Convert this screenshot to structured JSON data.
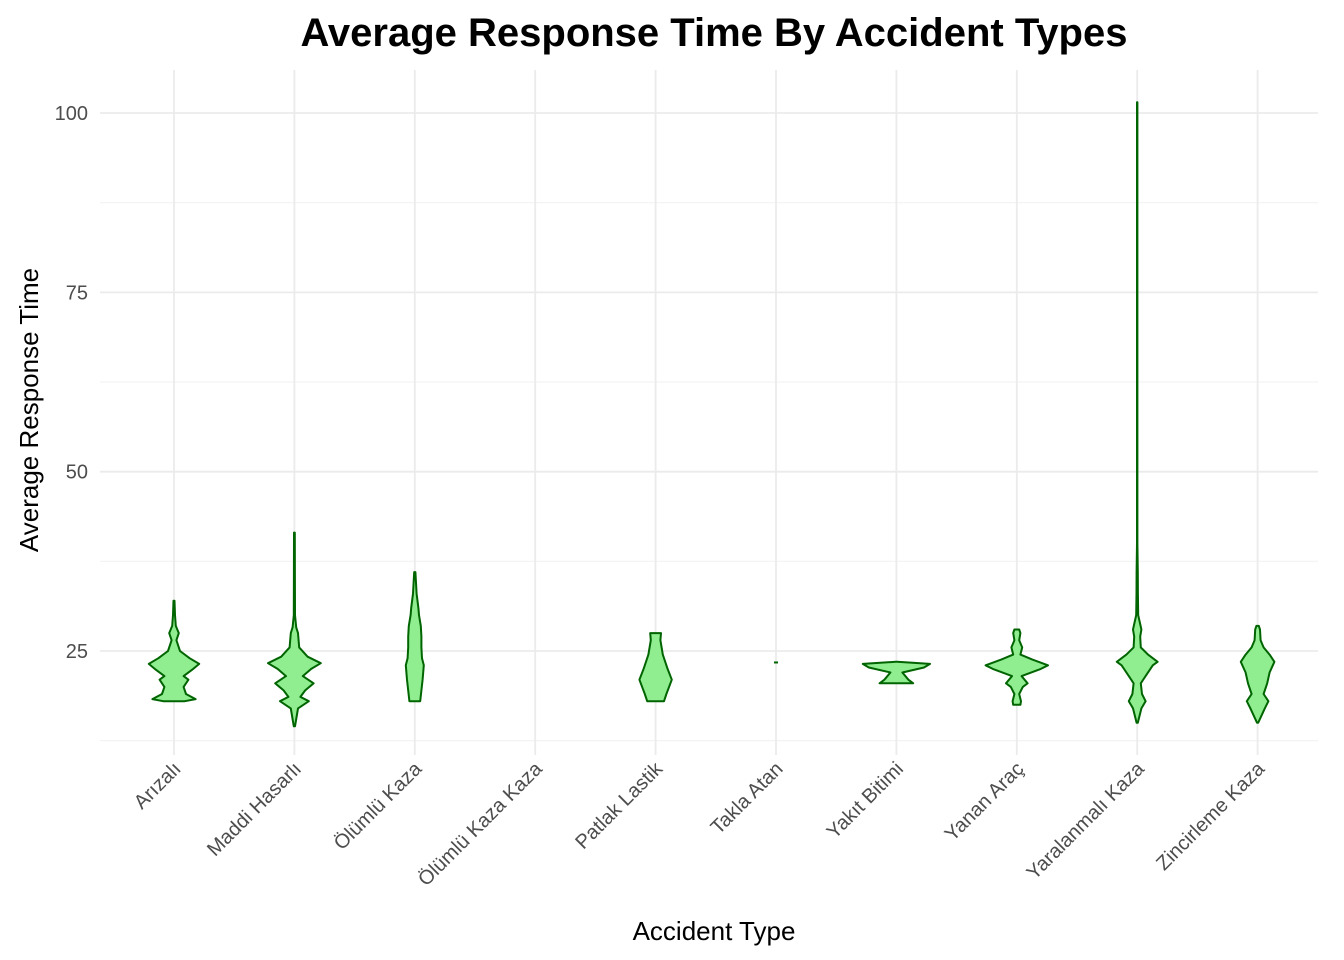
{
  "chart_data": {
    "type": "violin",
    "title": "Average Response Time By Accident Types",
    "xlabel": "Accident Type",
    "ylabel": "Average Response Time",
    "ylim": [
      10.5,
      106
    ],
    "yticks": [
      25,
      50,
      75,
      100
    ],
    "grid": true,
    "legend": "none",
    "fill_color": "#90ee90",
    "outline_color": "#006400",
    "categories": [
      "Arızalı",
      "Maddi Hasarlı",
      "Ölümlü Kaza",
      "Ölümlü Kaza Kaza",
      "Patlak Lastik",
      "Takla Atan",
      "Yakıt Bitimi",
      "Yanan Araç",
      "Yaralanmalı Kaza",
      "Zincirleme Kaza"
    ],
    "violins": [
      {
        "category": "Arızalı",
        "min": 18.0,
        "max": 32.0,
        "profile": [
          [
            18.0,
            0.9
          ],
          [
            18.3,
            1.8
          ],
          [
            19.0,
            1.0
          ],
          [
            20.0,
            0.8
          ],
          [
            21.0,
            1.2
          ],
          [
            21.5,
            0.8
          ],
          [
            22.5,
            1.6
          ],
          [
            23.2,
            2.1
          ],
          [
            24.0,
            1.3
          ],
          [
            25.0,
            0.5
          ],
          [
            26.5,
            0.2
          ],
          [
            27.5,
            0.4
          ],
          [
            28.5,
            0.15
          ],
          [
            30.0,
            0.08
          ],
          [
            32.0,
            0.04
          ]
        ]
      },
      {
        "category": "Maddi Hasarlı",
        "min": 14.5,
        "max": 41.5,
        "profile": [
          [
            14.5,
            0.05
          ],
          [
            17.0,
            0.3
          ],
          [
            18.0,
            1.2
          ],
          [
            18.6,
            0.5
          ],
          [
            19.5,
            0.9
          ],
          [
            20.5,
            1.6
          ],
          [
            21.5,
            0.7
          ],
          [
            22.5,
            1.4
          ],
          [
            23.3,
            2.2
          ],
          [
            24.2,
            1.1
          ],
          [
            25.5,
            0.4
          ],
          [
            27.5,
            0.3
          ],
          [
            28.3,
            0.15
          ],
          [
            30.0,
            0.05
          ],
          [
            35.0,
            0.04
          ],
          [
            41.5,
            0.03
          ]
        ]
      },
      {
        "category": "Ölümlü Kaza",
        "min": 18.0,
        "max": 36.0,
        "profile": [
          [
            18.0,
            0.45
          ],
          [
            19.5,
            0.55
          ],
          [
            21.0,
            0.65
          ],
          [
            23.0,
            0.75
          ],
          [
            24.0,
            0.6
          ],
          [
            25.5,
            0.55
          ],
          [
            27.0,
            0.55
          ],
          [
            28.5,
            0.5
          ],
          [
            30.0,
            0.35
          ],
          [
            31.0,
            0.3
          ],
          [
            33.0,
            0.15
          ],
          [
            36.0,
            0.05
          ]
        ]
      },
      {
        "category": "Ölümlü Kaza Kaza",
        "min": 0,
        "max": 0,
        "profile": []
      },
      {
        "category": "Patlak Lastik",
        "min": 18.0,
        "max": 27.5,
        "profile": [
          [
            18.0,
            0.7
          ],
          [
            19.0,
            0.9
          ],
          [
            21.0,
            1.35
          ],
          [
            22.5,
            1.0
          ],
          [
            24.5,
            0.6
          ],
          [
            26.5,
            0.4
          ],
          [
            27.5,
            0.45
          ]
        ]
      },
      {
        "category": "Takla Atan",
        "min": 23.4,
        "max": 23.4,
        "point": true,
        "profile": []
      },
      {
        "category": "Yakıt Bitimi",
        "min": 20.5,
        "max": 23.5,
        "profile": [
          [
            20.5,
            1.4
          ],
          [
            21.0,
            1.0
          ],
          [
            22.0,
            0.5
          ],
          [
            22.7,
            2.3
          ],
          [
            23.2,
            2.8
          ],
          [
            23.5,
            0.05
          ]
        ]
      },
      {
        "category": "Yanan Araç",
        "min": 17.5,
        "max": 28.0,
        "profile": [
          [
            17.5,
            0.3
          ],
          [
            18.0,
            0.35
          ],
          [
            19.0,
            0.2
          ],
          [
            20.0,
            0.5
          ],
          [
            20.5,
            0.9
          ],
          [
            21.5,
            0.4
          ],
          [
            22.5,
            2.0
          ],
          [
            23.0,
            2.6
          ],
          [
            23.8,
            1.3
          ],
          [
            24.5,
            0.3
          ],
          [
            25.5,
            0.45
          ],
          [
            26.5,
            0.2
          ],
          [
            27.5,
            0.3
          ],
          [
            28.0,
            0.2
          ]
        ]
      },
      {
        "category": "Yaralanmalı Kaza",
        "min": 15.0,
        "max": 101.5,
        "profile": [
          [
            15.0,
            0.05
          ],
          [
            17.0,
            0.35
          ],
          [
            18.0,
            0.7
          ],
          [
            19.0,
            0.4
          ],
          [
            20.5,
            0.3
          ],
          [
            21.5,
            0.7
          ],
          [
            23.0,
            1.3
          ],
          [
            23.5,
            1.7
          ],
          [
            24.5,
            0.9
          ],
          [
            25.5,
            0.3
          ],
          [
            27.0,
            0.25
          ],
          [
            28.0,
            0.35
          ],
          [
            30.0,
            0.08
          ],
          [
            33.0,
            0.06
          ],
          [
            36.0,
            0.05
          ],
          [
            40.0,
            0.02
          ],
          [
            101.5,
            0.02
          ]
        ]
      },
      {
        "category": "Zincirleme Kaza",
        "min": 15.0,
        "max": 28.5,
        "profile": [
          [
            15.0,
            0.05
          ],
          [
            17.0,
            0.6
          ],
          [
            18.0,
            0.9
          ],
          [
            19.0,
            0.5
          ],
          [
            20.5,
            0.8
          ],
          [
            22.0,
            1.0
          ],
          [
            23.5,
            1.4
          ],
          [
            24.5,
            1.0
          ],
          [
            25.5,
            0.5
          ],
          [
            26.5,
            0.25
          ],
          [
            28.0,
            0.2
          ],
          [
            28.5,
            0.1
          ]
        ]
      }
    ]
  }
}
